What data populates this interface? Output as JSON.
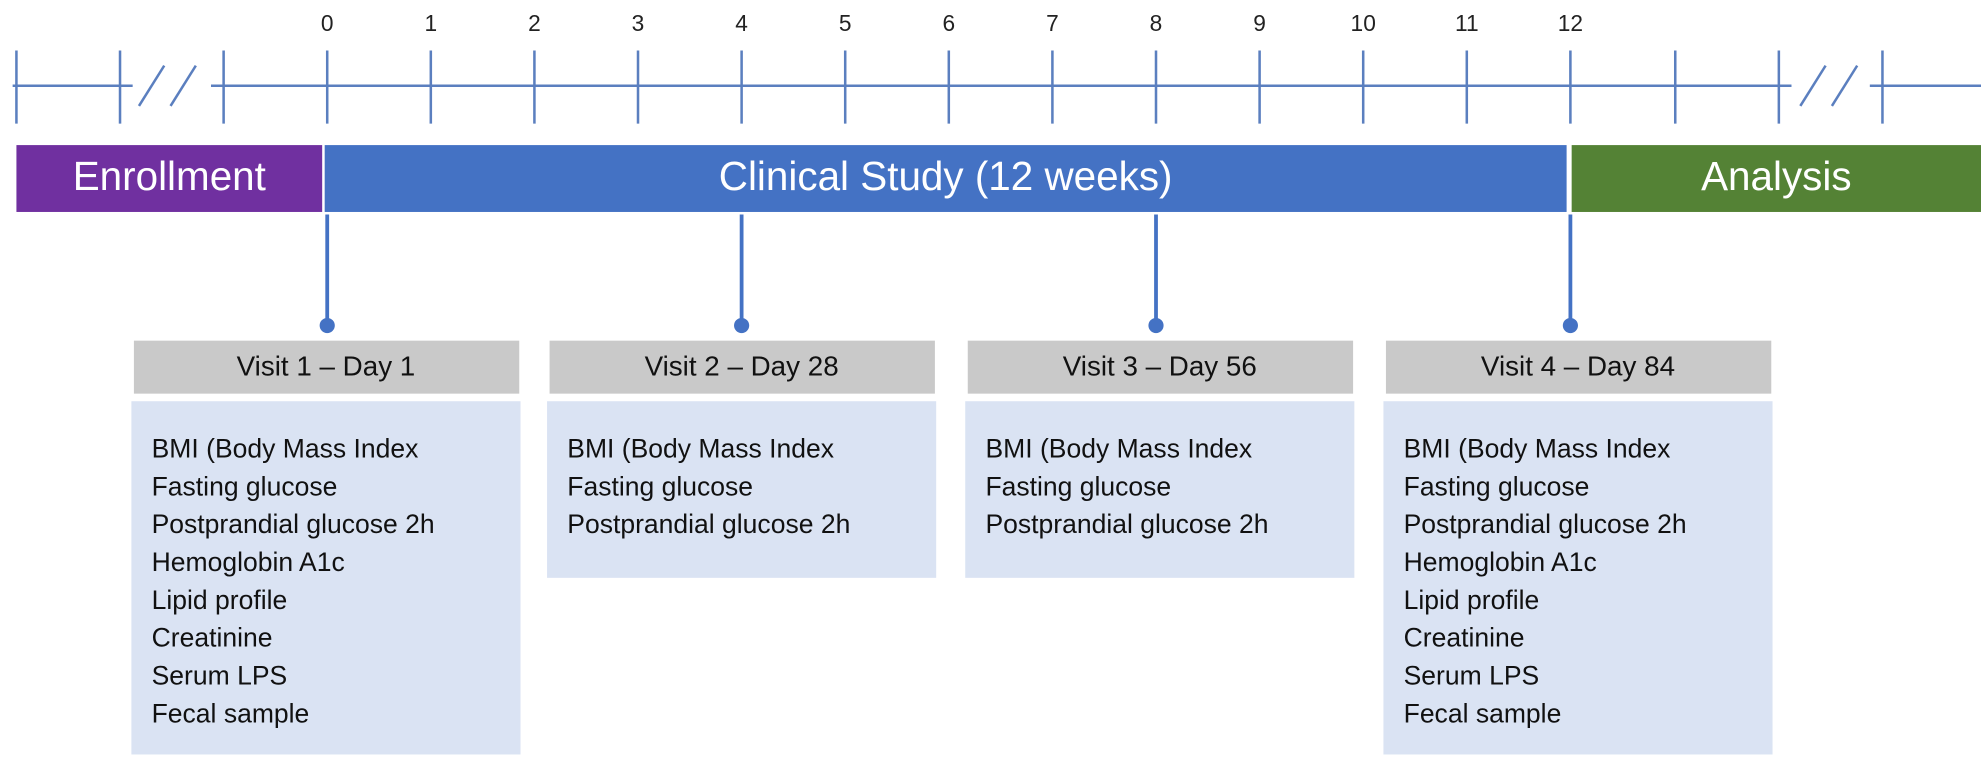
{
  "timeline": {
    "ticks": [
      "0",
      "1",
      "2",
      "3",
      "4",
      "5",
      "6",
      "7",
      "8",
      "9",
      "10",
      "11",
      "12"
    ]
  },
  "phases": [
    {
      "label": "Enrollment"
    },
    {
      "label": "Clinical Study (12 weeks)"
    },
    {
      "label": "Analysis"
    }
  ],
  "visits": [
    {
      "title": "Visit 1 – Day 1",
      "items": [
        "BMI (Body Mass Index",
        "Fasting glucose",
        "Postprandial glucose 2h",
        "Hemoglobin A1c",
        "Lipid profile",
        "Creatinine",
        "Serum LPS",
        "Fecal sample"
      ]
    },
    {
      "title": "Visit 2 – Day 28",
      "items": [
        "BMI (Body Mass Index",
        "Fasting glucose",
        "Postprandial glucose 2h"
      ]
    },
    {
      "title": "Visit 3 – Day 56",
      "items": [
        "BMI (Body Mass Index",
        "Fasting glucose",
        "Postprandial glucose 2h"
      ]
    },
    {
      "title": "Visit 4 – Day 84",
      "items": [
        "BMI (Body Mass Index",
        "Fasting glucose",
        "Postprandial glucose 2h",
        "Hemoglobin A1c",
        "Lipid profile",
        "Creatinine",
        "Serum LPS",
        "Fecal sample"
      ]
    }
  ]
}
